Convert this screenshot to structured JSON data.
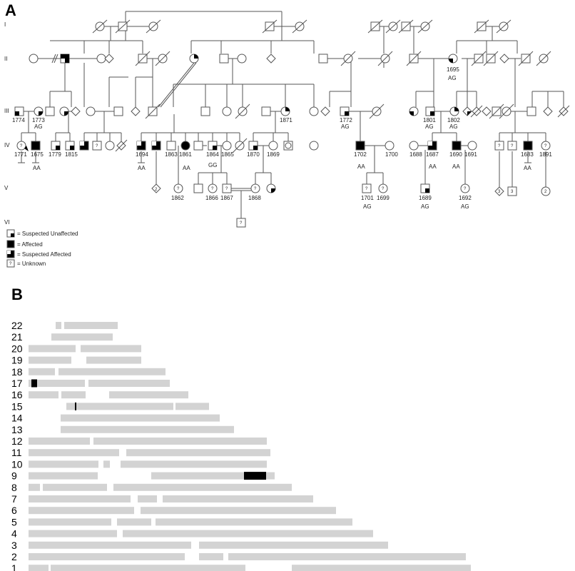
{
  "panel_a": {
    "label": "A",
    "generations": [
      "I",
      "II",
      "III",
      "IV",
      "V",
      "VI"
    ],
    "ids": {
      "p1774": "1774",
      "p1773": "1773",
      "p1771": "1771",
      "p1675": "1675",
      "p1779": "1779",
      "p1815": "1815",
      "p1871": "1871",
      "p1772": "1772",
      "p1801": "1801",
      "p1802": "1802",
      "p1695": "1695",
      "p1694": "1694",
      "p1863": "1863",
      "p1861": "1861",
      "p1864": "1864",
      "p1865": "1865",
      "p1870": "1870",
      "p1869": "1869",
      "p1702": "1702",
      "p1700": "1700",
      "p1688": "1688",
      "p1687": "1687",
      "p1690": "1690",
      "p1691": "1691",
      "p1683": "1683",
      "p1891": "1891",
      "p1862": "1862",
      "p1866": "1866",
      "p1867": "1867",
      "p1868": "1868",
      "p1701": "1701",
      "p1699": "1699",
      "p1689": "1689",
      "p1692": "1692"
    },
    "genotypes": {
      "g1773": "AG",
      "g1675": "AA",
      "g1695": "AG",
      "g1772": "AG",
      "g1801": "AG",
      "g1802": "AG",
      "g1694": "AA",
      "g1861": "AA",
      "g1864": "GG",
      "g1702": "AA",
      "g1687": "AA",
      "g1690": "AA",
      "g1683": "AA",
      "g1701": "AG",
      "g1689": "AG",
      "g1692": "AG"
    },
    "counts": {
      "c1": "2",
      "c2": "3",
      "c3": "3",
      "c4": "2"
    },
    "unknown_mark": "?",
    "legend": [
      {
        "symbol": "suspected-unaffected",
        "label": "= Suspected Unaffected"
      },
      {
        "symbol": "affected",
        "label": "= Affected"
      },
      {
        "symbol": "suspected-affected",
        "label": "= Suspected Affected"
      },
      {
        "symbol": "unknown",
        "label": "= Unknown"
      }
    ]
  },
  "panel_b": {
    "label": "B"
  },
  "chart_data": {
    "type": "bar",
    "orientation": "horizontal",
    "description_units": "relative chromosome position",
    "categories": [
      "22",
      "21",
      "20",
      "19",
      "18",
      "17",
      "16",
      "15",
      "14",
      "13",
      "12",
      "11",
      "10",
      "9",
      "8",
      "7",
      "6",
      "5",
      "4",
      "3",
      "2",
      "1"
    ],
    "xlim": [
      0,
      620
    ],
    "series": [
      {
        "name": "",
        "type": "gray",
        "segments": {
          "22": [
            [
              40,
              48
            ],
            [
              52,
              127
            ]
          ],
          "21": [
            [
              34,
              120
            ]
          ],
          "20": [
            [
              2,
              68
            ],
            [
              75,
              160
            ]
          ],
          "19": [
            [
              2,
              62
            ],
            [
              83,
              160
            ]
          ],
          "18": [
            [
              2,
              39
            ],
            [
              44,
              194
            ]
          ],
          "17": [
            [
              2,
              81
            ],
            [
              86,
              200
            ]
          ],
          "16": [
            [
              2,
              44
            ],
            [
              48,
              82
            ],
            [
              115,
              226
            ]
          ],
          "15": [
            [
              55,
              205
            ],
            [
              208,
              255
            ]
          ],
          "14": [
            [
              47,
              270
            ]
          ],
          "13": [
            [
              47,
              290
            ]
          ],
          "12": [
            [
              2,
              88
            ],
            [
              93,
              336
            ]
          ],
          "11": [
            [
              2,
              129
            ],
            [
              139,
              341
            ]
          ],
          "10": [
            [
              2,
              100
            ],
            [
              107,
              116
            ],
            [
              131,
              336
            ]
          ],
          "9": [
            [
              2,
              99
            ],
            [
              174,
              347
            ]
          ],
          "8": [
            [
              2,
              18
            ],
            [
              22,
              112
            ],
            [
              121,
              371
            ]
          ],
          "7": [
            [
              2,
              145
            ],
            [
              155,
              182
            ],
            [
              190,
              401
            ]
          ],
          "6": [
            [
              2,
              150
            ],
            [
              159,
              433
            ]
          ],
          "5": [
            [
              2,
              118
            ],
            [
              126,
              174
            ],
            [
              180,
              456
            ]
          ],
          "4": [
            [
              2,
              126
            ],
            [
              134,
              485
            ]
          ],
          "3": [
            [
              2,
              230
            ],
            [
              241,
              506
            ]
          ],
          "2": [
            [
              2,
              221
            ],
            [
              241,
              275
            ],
            [
              282,
              615
            ]
          ],
          "1": [
            [
              2,
              30
            ],
            [
              33,
              306
            ],
            [
              371,
              622
            ]
          ]
        }
      },
      {
        "name": "",
        "type": "black",
        "segments": {
          "17": [
            [
              6,
              14
            ]
          ],
          "15": [
            [
              67,
              69
            ]
          ],
          "9": [
            [
              304,
              335
            ]
          ]
        }
      }
    ]
  },
  "colors": {
    "gray": "#d3d3d3",
    "black": "#000000",
    "line": "#555555"
  }
}
